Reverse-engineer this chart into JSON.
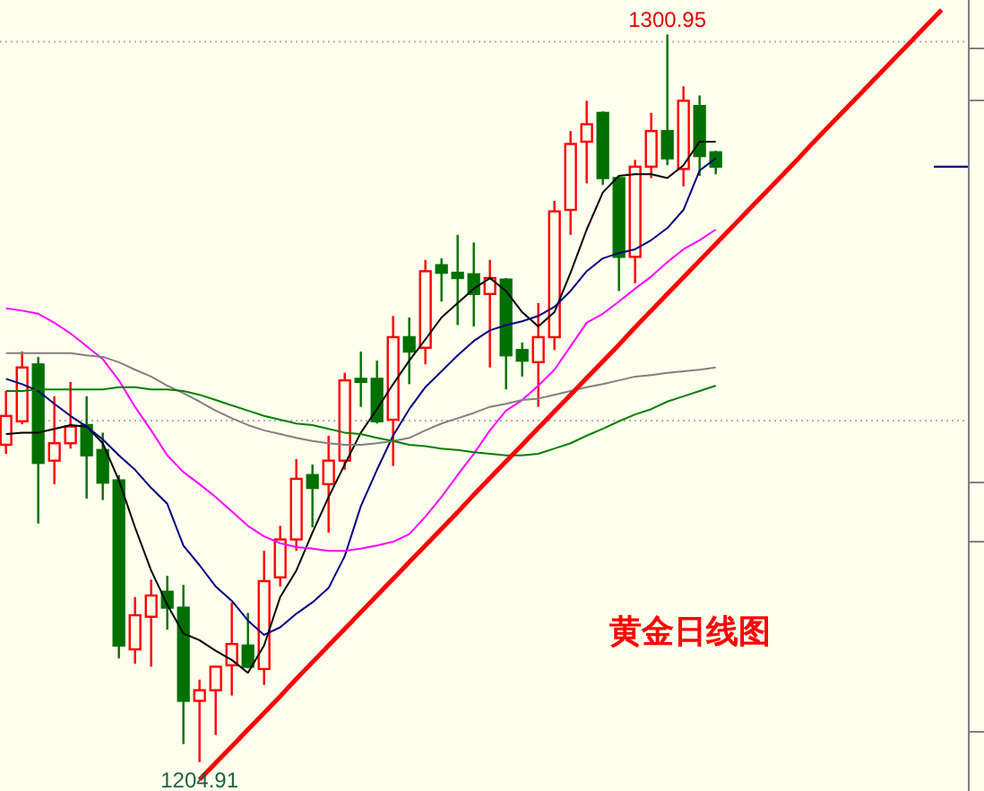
{
  "chart_data": {
    "type": "candlestick",
    "categories": [
      null,
      null,
      null,
      null,
      null,
      null,
      null,
      null,
      null,
      null,
      null,
      null,
      null,
      null,
      null,
      null,
      null,
      null,
      null,
      null,
      null,
      null,
      null,
      null,
      null,
      null,
      null,
      null,
      null,
      null,
      null,
      null,
      null,
      null,
      null,
      null,
      null,
      null,
      null,
      null,
      null,
      null,
      null,
      null,
      null,
      null,
      null,
      null,
      null,
      null,
      null,
      null,
      null,
      null,
      null,
      null,
      null,
      null,
      null,
      null
    ],
    "ylim": [
      1201.1,
      1305.5
    ],
    "yticks": [
      {
        "value": 1250,
        "label": null
      },
      {
        "value": 1300,
        "label": null
      }
    ],
    "grid": "y",
    "ohlc": [
      [
        1246.8,
        1253.9,
        1245.6,
        1250.6
      ],
      [
        1249.9,
        1259.1,
        1249.5,
        1257.0
      ],
      [
        1257.4,
        1258.4,
        1236.4,
        1244.4
      ],
      [
        1244.7,
        1253.2,
        1241.6,
        1247.0
      ],
      [
        1247.0,
        1255.1,
        1246.3,
        1249.2
      ],
      [
        1249.4,
        1253.2,
        1239.7,
        1245.4
      ],
      [
        1246.1,
        1248.4,
        1239.5,
        1241.8
      ],
      [
        1242.1,
        1242.8,
        1218.6,
        1220.3
      ],
      [
        1219.8,
        1226.7,
        1217.9,
        1224.3
      ],
      [
        1224.1,
        1229.0,
        1217.5,
        1226.9
      ],
      [
        1227.4,
        1229.5,
        1222.4,
        1225.3
      ],
      [
        1225.3,
        1228.3,
        1207.3,
        1213.0
      ],
      [
        1213.0,
        1215.8,
        1204.91,
        1214.4
      ],
      [
        1214.4,
        1217.5,
        1208.5,
        1217.5
      ],
      [
        1217.7,
        1226.0,
        1213.7,
        1220.5
      ],
      [
        1220.3,
        1224.6,
        1217.3,
        1217.5
      ],
      [
        1217.2,
        1232.8,
        1215.1,
        1228.8
      ],
      [
        1229.3,
        1236.1,
        1228.1,
        1234.3
      ],
      [
        1234.3,
        1244.9,
        1232.8,
        1242.3
      ],
      [
        1242.8,
        1244.2,
        1235.9,
        1241.1
      ],
      [
        1241.6,
        1248.0,
        1235.2,
        1244.7
      ],
      [
        1244.7,
        1256.3,
        1243.5,
        1255.3
      ],
      [
        1255.5,
        1259.1,
        1251.8,
        1255.1
      ],
      [
        1255.5,
        1257.9,
        1249.6,
        1249.9
      ],
      [
        1250.1,
        1263.8,
        1244.0,
        1261.0
      ],
      [
        1261.0,
        1263.6,
        1254.8,
        1259.1
      ],
      [
        1259.6,
        1271.2,
        1257.4,
        1269.7
      ],
      [
        1270.5,
        1271.4,
        1265.7,
        1269.5
      ],
      [
        1269.5,
        1274.5,
        1262.6,
        1268.8
      ],
      [
        1269.3,
        1273.5,
        1262.4,
        1266.7
      ],
      [
        1266.7,
        1271.2,
        1257.0,
        1268.8
      ],
      [
        1268.6,
        1268.8,
        1254.1,
        1258.6
      ],
      [
        1259.3,
        1260.3,
        1255.8,
        1257.9
      ],
      [
        1257.7,
        1265.5,
        1251.8,
        1261.0
      ],
      [
        1261.0,
        1279.0,
        1259.3,
        1277.6
      ],
      [
        1277.8,
        1288.2,
        1274.5,
        1286.5
      ],
      [
        1286.8,
        1292.2,
        1281.3,
        1289.1
      ],
      [
        1290.6,
        1290.8,
        1281.1,
        1282.0
      ],
      [
        1282.0,
        1282.3,
        1267.1,
        1271.6
      ],
      [
        1271.6,
        1284.4,
        1268.1,
        1283.5
      ],
      [
        1283.5,
        1290.6,
        1282.0,
        1288.2
      ],
      [
        1288.2,
        1300.95,
        1283.7,
        1284.6
      ],
      [
        1283.2,
        1294.1,
        1280.9,
        1292.2
      ],
      [
        1291.5,
        1292.9,
        1282.3,
        1284.9
      ],
      [
        1285.4,
        1285.6,
        1282.5,
        1283.5
      ],
      null,
      null,
      null,
      null,
      null,
      null,
      null,
      null,
      null,
      null,
      null,
      null,
      null,
      null,
      null
    ],
    "colors": [
      "#ff0000",
      "#ff0000",
      "#007000",
      "#ff0000",
      "#ff0000",
      "#007000",
      "#007000",
      "#007000",
      "#ff0000",
      "#ff0000",
      "#007000",
      "#007000",
      "#ff0000",
      "#ff0000",
      "#ff0000",
      "#007000",
      "#ff0000",
      "#ff0000",
      "#ff0000",
      "#007000",
      "#ff0000",
      "#ff0000",
      "#007000",
      "#007000",
      "#ff0000",
      "#007000",
      "#ff0000",
      "#007000",
      "#007000",
      "#007000",
      "#ff0000",
      "#007000",
      "#007000",
      "#ff0000",
      "#ff0000",
      "#ff0000",
      "#ff0000",
      "#007000",
      "#007000",
      "#ff0000",
      "#ff0000",
      "#007000",
      "#ff0000",
      "#007000",
      "#007000",
      null,
      null,
      null,
      null,
      null,
      null,
      null,
      null,
      null,
      null,
      null,
      null,
      null,
      null,
      null
    ],
    "series": [
      {
        "type": "line",
        "color": "#000000",
        "values": [
          1248.2,
          1248.4,
          1248.4,
          1248.9,
          1249.4,
          1249.2,
          1247.0,
          1242.1,
          1235.9,
          1230.2,
          1225.7,
          1221.9,
          1221.0,
          1219.6,
          1218.4,
          1216.7,
          1220.3,
          1226.7,
          1230.2,
          1235.2,
          1239.9,
          1244.2,
          1248.4,
          1251.5,
          1254.8,
          1257.9,
          1260.7,
          1263.6,
          1265.5,
          1267.4,
          1268.8,
          1267.1,
          1264.3,
          1262.4,
          1264.3,
          1269.5,
          1275.2,
          1280.1,
          1282.3,
          1282.5,
          1282.5,
          1282.0,
          1283.7,
          1286.8,
          1286.8,
          null,
          null,
          null,
          null,
          null,
          null,
          null,
          null,
          null,
          null,
          null,
          null,
          null,
          null,
          null
        ]
      },
      {
        "type": "line",
        "color": "#000080",
        "values": [
          1255.5,
          1254.8,
          1253.9,
          1252.2,
          1250.6,
          1249.2,
          1247.5,
          1245.4,
          1243.5,
          1241.1,
          1239.0,
          1233.5,
          1230.9,
          1228.1,
          1226.2,
          1223.6,
          1221.7,
          1222.7,
          1224.5,
          1226.0,
          1227.9,
          1232.1,
          1238.7,
          1243.5,
          1248.0,
          1251.5,
          1254.4,
          1256.5,
          1258.6,
          1260.5,
          1261.9,
          1262.6,
          1263.1,
          1263.8,
          1265.0,
          1267.1,
          1269.7,
          1271.4,
          1272.1,
          1272.6,
          1273.8,
          1275.4,
          1277.8,
          1283.0,
          1284.6,
          null,
          null,
          null,
          null,
          null,
          null,
          null,
          null,
          null,
          null,
          null,
          null,
          null,
          null,
          null
        ]
      },
      {
        "type": "line",
        "color": "#ff00ff",
        "values": [
          1264.8,
          1264.5,
          1264.1,
          1262.9,
          1261.5,
          1259.8,
          1258.1,
          1255.3,
          1251.8,
          1248.7,
          1245.4,
          1243.2,
          1241.6,
          1239.9,
          1238.0,
          1236.1,
          1234.7,
          1233.8,
          1233.3,
          1233.1,
          1232.8,
          1232.8,
          1233.1,
          1233.5,
          1234.0,
          1235.0,
          1237.3,
          1239.9,
          1242.8,
          1245.6,
          1248.7,
          1251.3,
          1252.7,
          1254.6,
          1256.7,
          1259.8,
          1262.9,
          1264.1,
          1265.7,
          1267.4,
          1269.0,
          1270.9,
          1272.6,
          1273.8,
          1275.2,
          null,
          null,
          null,
          null,
          null,
          null,
          null,
          null,
          null,
          null,
          null,
          null,
          null,
          null,
          null
        ]
      },
      {
        "type": "line",
        "color": "#808080",
        "values": [
          1258.9,
          1258.9,
          1258.9,
          1258.9,
          1258.9,
          1258.6,
          1258.4,
          1257.7,
          1256.7,
          1255.8,
          1254.6,
          1253.6,
          1252.5,
          1251.3,
          1250.3,
          1249.4,
          1248.7,
          1248.2,
          1247.7,
          1247.3,
          1247.0,
          1246.8,
          1246.8,
          1247.0,
          1247.3,
          1247.7,
          1248.7,
          1249.6,
          1250.3,
          1251.0,
          1251.8,
          1252.2,
          1252.7,
          1252.9,
          1253.4,
          1253.9,
          1254.4,
          1254.8,
          1255.3,
          1255.8,
          1256.0,
          1256.3,
          1256.5,
          1256.7,
          1257.0,
          null,
          null,
          null,
          null,
          null,
          null,
          null,
          null,
          null,
          null,
          null,
          null,
          null,
          null,
          null
        ]
      },
      {
        "type": "line",
        "color": "#008000",
        "values": [
          1253.9,
          1253.9,
          1254.1,
          1254.1,
          1254.1,
          1254.1,
          1254.1,
          1254.4,
          1254.4,
          1254.1,
          1254.1,
          1253.9,
          1253.4,
          1252.7,
          1252.0,
          1251.3,
          1250.6,
          1250.1,
          1249.6,
          1249.4,
          1248.9,
          1248.4,
          1248.2,
          1247.7,
          1247.3,
          1246.8,
          1246.6,
          1246.3,
          1246.1,
          1245.8,
          1245.6,
          1245.4,
          1245.4,
          1245.6,
          1246.3,
          1247.0,
          1248.0,
          1248.9,
          1249.9,
          1250.8,
          1251.5,
          1252.5,
          1253.2,
          1253.9,
          1254.6,
          null,
          null,
          null,
          null,
          null,
          null,
          null,
          null,
          null,
          null,
          null,
          null,
          null,
          null,
          null
        ]
      },
      {
        "type": "line",
        "color": "#ff0000",
        "values": [
          null,
          null,
          null,
          null,
          null,
          null,
          null,
          null,
          null,
          null,
          null,
          null,
          1202.6,
          1204.8,
          1207.0,
          1209.2,
          1211.4,
          1213.6,
          1215.9,
          1218.1,
          1220.3,
          1222.5,
          1224.7,
          1226.9,
          1229.1,
          1231.3,
          1233.5,
          1235.7,
          1237.9,
          1240.2,
          1242.4,
          1244.6,
          1246.8,
          1249.0,
          1251.2,
          1253.4,
          1255.6,
          1257.8,
          1260.0,
          1262.3,
          1264.5,
          1266.7,
          1268.9,
          1271.1,
          1273.3,
          1275.5,
          1277.7,
          1279.9,
          1282.1,
          1284.3,
          1286.6,
          1288.8,
          1291.0,
          1293.2,
          1295.4,
          1297.6,
          1299.8,
          1302.0,
          1304.2,
          null
        ]
      }
    ],
    "annotations": [
      {
        "text": "1300.95",
        "y": 1300.95
      },
      {
        "text": "1204.91",
        "y": 1204.91
      },
      "黄金日线图"
    ]
  }
}
